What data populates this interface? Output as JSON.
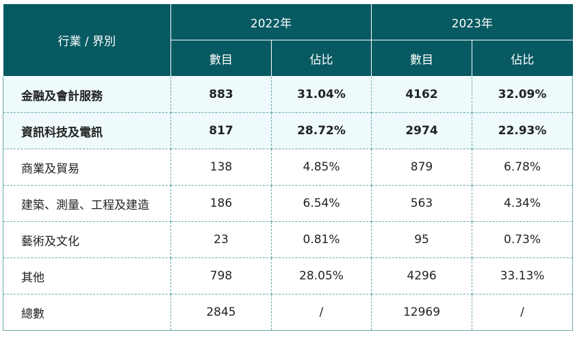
{
  "table": {
    "header": {
      "corner": "行業 / 界別",
      "year_2022": "2022年",
      "year_2023": "2023年",
      "count_2022": "數目",
      "share_2022": "佔比",
      "count_2023": "數目",
      "share_2023": "佔比"
    },
    "rows": [
      {
        "label": "金融及會計服務",
        "count_2022": "883",
        "share_2022": "31.04%",
        "count_2023": "4162",
        "share_2023": "32.09%"
      },
      {
        "label": "資訊科技及電訊",
        "count_2022": "817",
        "share_2022": "28.72%",
        "count_2023": "2974",
        "share_2023": "22.93%"
      },
      {
        "label": "商業及貿易",
        "count_2022": "138",
        "share_2022": "4.85%",
        "count_2023": "879",
        "share_2023": "6.78%"
      },
      {
        "label": "建築、測量、工程及建造",
        "count_2022": "186",
        "share_2022": "6.54%",
        "count_2023": "563",
        "share_2023": "4.34%"
      },
      {
        "label": "藝術及文化",
        "count_2022": "23",
        "share_2022": "0.81%",
        "count_2023": "95",
        "share_2023": "0.73%"
      },
      {
        "label": "其他",
        "count_2022": "798",
        "share_2022": "28.05%",
        "count_2023": "4296",
        "share_2023": "33.13%"
      },
      {
        "label": "總數",
        "count_2022": "2845",
        "share_2022": "/",
        "count_2023": "12969",
        "share_2023": "/"
      }
    ],
    "colors": {
      "header_bg": "#085a62",
      "highlight_bg": "#eefafb",
      "grid": "#6aa7ab"
    }
  }
}
